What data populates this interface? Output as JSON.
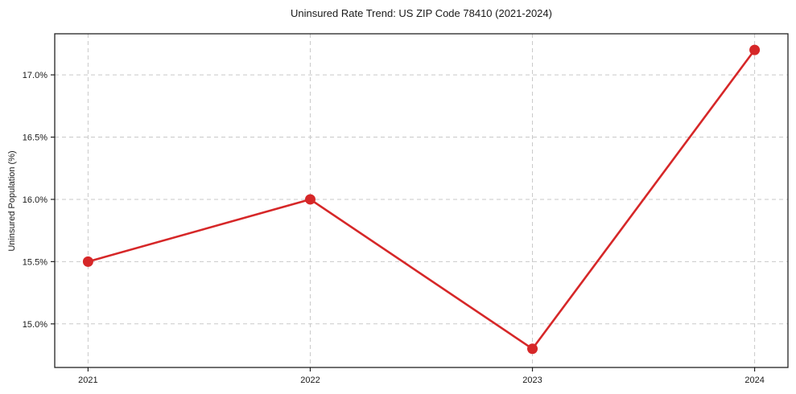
{
  "chart_data": {
    "type": "line",
    "title": "Uninsured Rate Trend: US ZIP Code 78410 (2021-2024)",
    "xlabel": "",
    "ylabel": "Uninsured Population (%)",
    "x": [
      2021,
      2022,
      2023,
      2024
    ],
    "series": [
      {
        "name": "Uninsured rate",
        "values": [
          15.5,
          16.0,
          14.8,
          17.2
        ],
        "color": "#d62728",
        "marker": "circle"
      }
    ],
    "xticks": [
      2021,
      2022,
      2023,
      2024
    ],
    "xtick_labels": [
      "2021",
      "2022",
      "2023",
      "2024"
    ],
    "yticks": [
      15.0,
      15.5,
      16.0,
      16.5,
      17.0
    ],
    "ytick_labels": [
      "15.0%",
      "15.5%",
      "16.0%",
      "16.5%",
      "17.0%"
    ],
    "xlim": [
      2020.85,
      2024.15
    ],
    "ylim": [
      14.65,
      17.33
    ],
    "grid": true,
    "grid_style": "dashed",
    "grid_color": "#c9c9c9",
    "frame_color": "#222222",
    "text_color": "#1a1a1a",
    "background_color": "#ffffff",
    "legend": "none"
  }
}
